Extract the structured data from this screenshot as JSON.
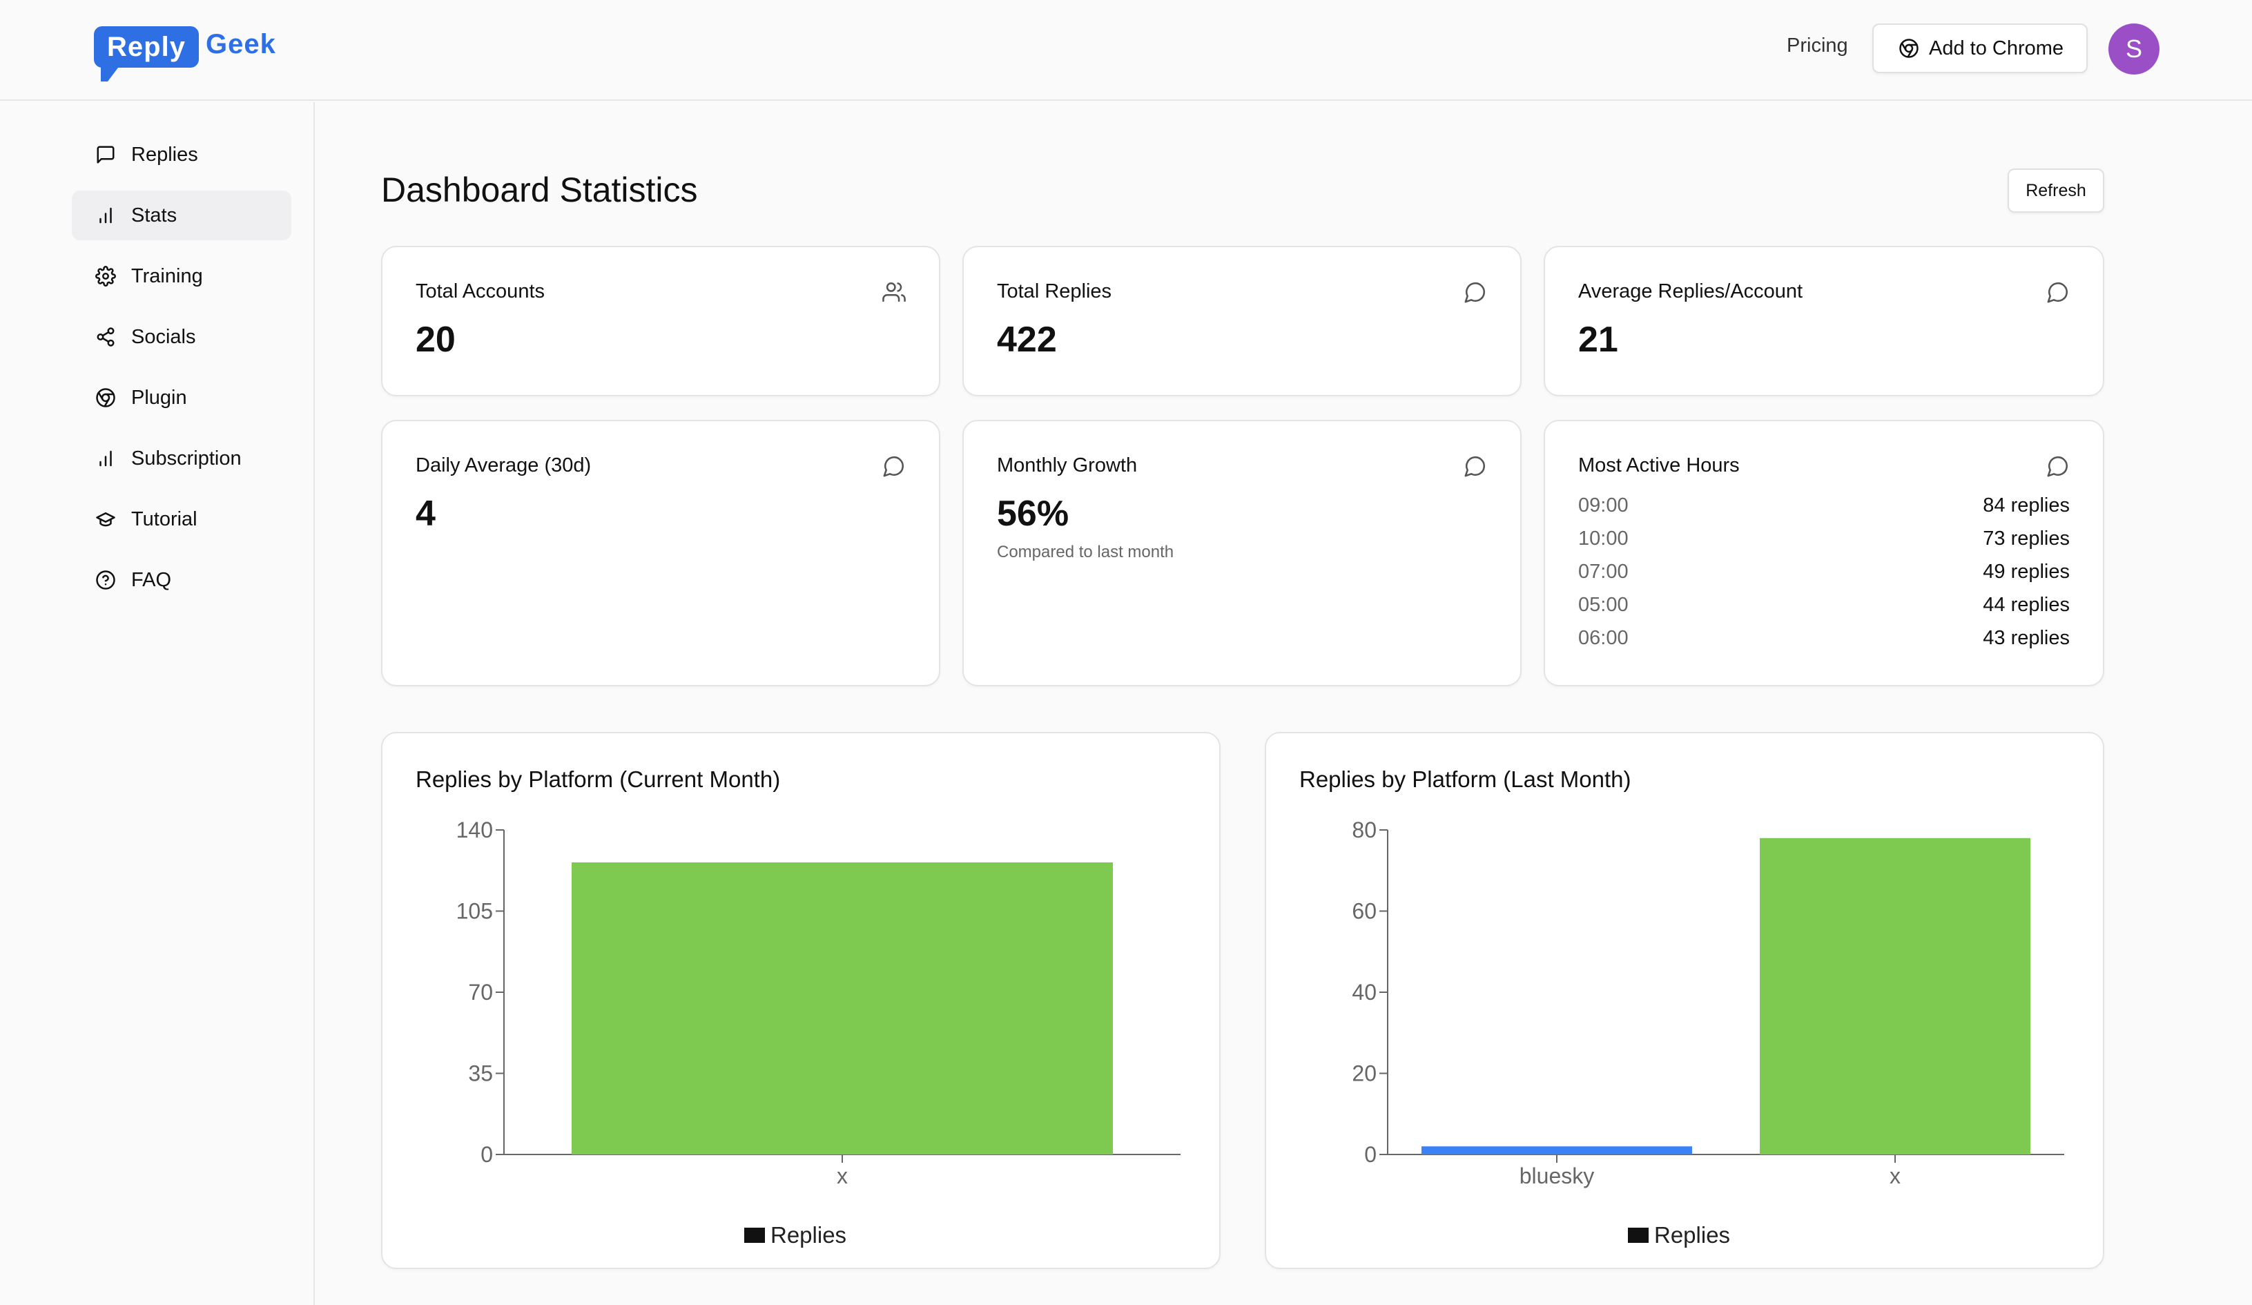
{
  "header": {
    "logo": {
      "reply": "Reply",
      "geek": "Geek"
    },
    "pricing_label": "Pricing",
    "add_chrome_label": "Add to Chrome",
    "avatar_initial": "S",
    "brand_color": "#2f6fe4",
    "avatar_color": "#9b4fc6"
  },
  "sidebar": {
    "items": [
      {
        "label": "Replies",
        "icon": "message-square-icon",
        "active": false
      },
      {
        "label": "Stats",
        "icon": "bar-chart-icon",
        "active": true
      },
      {
        "label": "Training",
        "icon": "settings-icon",
        "active": false
      },
      {
        "label": "Socials",
        "icon": "share-icon",
        "active": false
      },
      {
        "label": "Plugin",
        "icon": "chrome-icon",
        "active": false
      },
      {
        "label": "Subscription",
        "icon": "bar-chart-icon",
        "active": false
      },
      {
        "label": "Tutorial",
        "icon": "graduation-cap-icon",
        "active": false
      },
      {
        "label": "FAQ",
        "icon": "help-circle-icon",
        "active": false
      }
    ]
  },
  "main": {
    "title": "Dashboard Statistics",
    "refresh_label": "Refresh",
    "cards": {
      "total_accounts": {
        "title": "Total Accounts",
        "value": "20",
        "icon": "users-icon"
      },
      "total_replies": {
        "title": "Total Replies",
        "value": "422",
        "icon": "message-circle-icon"
      },
      "avg_replies": {
        "title": "Average Replies/Account",
        "value": "21",
        "icon": "message-circle-icon"
      },
      "daily_avg": {
        "title": "Daily Average (30d)",
        "value": "4",
        "icon": "message-circle-icon"
      },
      "monthly_growth": {
        "title": "Monthly Growth",
        "value": "56%",
        "subtitle": "Compared to last month",
        "icon": "message-circle-icon"
      },
      "most_active": {
        "title": "Most Active Hours",
        "icon": "message-circle-icon",
        "rows": [
          {
            "hour": "09:00",
            "replies": "84 replies"
          },
          {
            "hour": "10:00",
            "replies": "73 replies"
          },
          {
            "hour": "07:00",
            "replies": "49 replies"
          },
          {
            "hour": "05:00",
            "replies": "44 replies"
          },
          {
            "hour": "06:00",
            "replies": "43 replies"
          }
        ]
      }
    }
  },
  "chart_data": [
    {
      "type": "bar",
      "title": "Replies by Platform (Current Month)",
      "categories": [
        "x"
      ],
      "series": [
        {
          "name": "Replies",
          "values": [
            126
          ]
        }
      ],
      "colors": [
        "#7ec950"
      ],
      "ylim": [
        0,
        140
      ],
      "yticks": [
        0,
        35,
        70,
        105,
        140
      ],
      "legend": "bottom-center"
    },
    {
      "type": "bar",
      "title": "Replies by Platform (Last Month)",
      "categories": [
        "bluesky",
        "x"
      ],
      "series": [
        {
          "name": "Replies",
          "values": [
            2,
            78
          ]
        }
      ],
      "colors": [
        "#3b82f6",
        "#7ec950"
      ],
      "ylim": [
        0,
        80
      ],
      "yticks": [
        0,
        20,
        40,
        60,
        80
      ],
      "legend": "bottom-center"
    }
  ]
}
